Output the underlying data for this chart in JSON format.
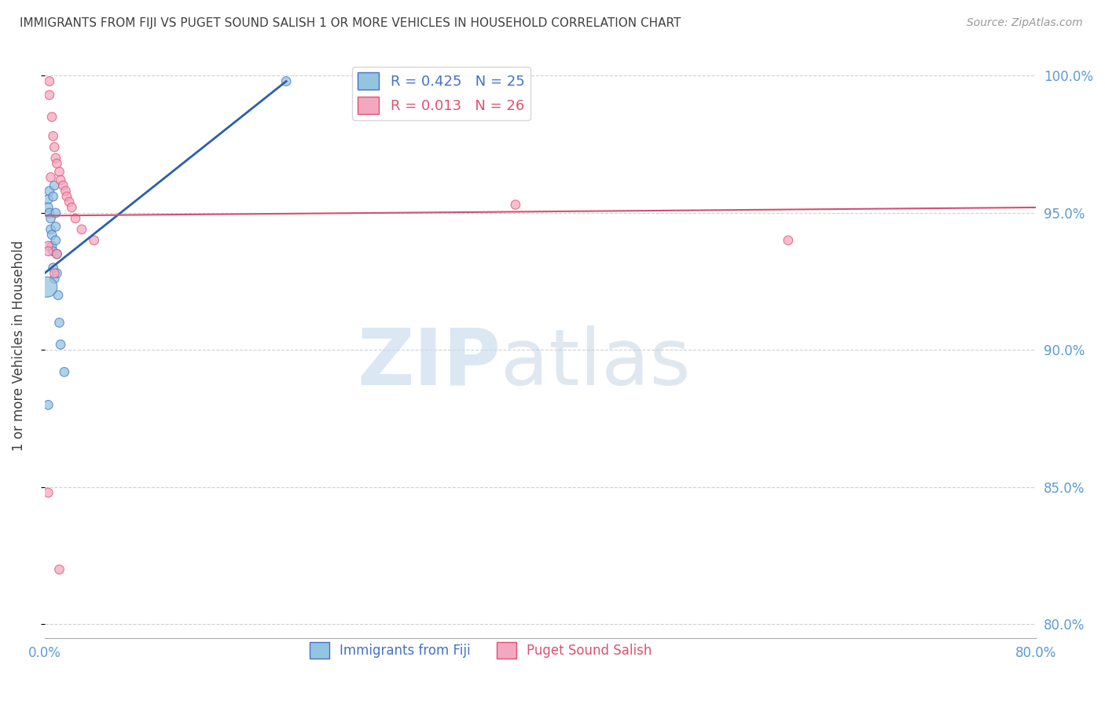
{
  "title": "IMMIGRANTS FROM FIJI VS PUGET SOUND SALISH 1 OR MORE VEHICLES IN HOUSEHOLD CORRELATION CHART",
  "source": "Source: ZipAtlas.com",
  "ylabel": "1 or more Vehicles in Household",
  "blue_label": "Immigrants from Fiji",
  "pink_label": "Puget Sound Salish",
  "blue_R": 0.425,
  "blue_N": 25,
  "pink_R": 0.013,
  "pink_N": 26,
  "xlim": [
    0.0,
    0.8
  ],
  "ylim": [
    0.795,
    1.008
  ],
  "yticks": [
    0.8,
    0.85,
    0.9,
    0.95,
    1.0
  ],
  "ytick_labels": [
    "80.0%",
    "85.0%",
    "90.0%",
    "95.0%",
    "100.0%"
  ],
  "blue_color": "#93c4e0",
  "pink_color": "#f4a8bf",
  "blue_edge_color": "#4472c4",
  "pink_edge_color": "#e05070",
  "blue_line_color": "#2b5fad",
  "pink_line_color": "#d45070",
  "axis_tick_color": "#5b9bd5",
  "title_color": "#404040",
  "grid_color": "#cccccc",
  "blue_x": [
    0.003,
    0.003,
    0.004,
    0.004,
    0.005,
    0.005,
    0.006,
    0.006,
    0.007,
    0.007,
    0.007,
    0.008,
    0.008,
    0.009,
    0.009,
    0.009,
    0.01,
    0.01,
    0.011,
    0.012,
    0.013,
    0.016,
    0.002,
    0.003,
    0.195
  ],
  "blue_y": [
    0.955,
    0.952,
    0.95,
    0.958,
    0.948,
    0.944,
    0.942,
    0.938,
    0.936,
    0.956,
    0.93,
    0.96,
    0.926,
    0.95,
    0.945,
    0.94,
    0.935,
    0.928,
    0.92,
    0.91,
    0.902,
    0.892,
    0.923,
    0.88,
    0.998
  ],
  "blue_large_idx": 22,
  "pink_x": [
    0.004,
    0.004,
    0.006,
    0.007,
    0.008,
    0.009,
    0.01,
    0.012,
    0.013,
    0.015,
    0.017,
    0.018,
    0.02,
    0.022,
    0.025,
    0.03,
    0.04,
    0.005,
    0.003,
    0.003,
    0.38,
    0.6,
    0.01,
    0.008,
    0.003,
    0.012
  ],
  "pink_y": [
    0.998,
    0.993,
    0.985,
    0.978,
    0.974,
    0.97,
    0.968,
    0.965,
    0.962,
    0.96,
    0.958,
    0.956,
    0.954,
    0.952,
    0.948,
    0.944,
    0.94,
    0.963,
    0.938,
    0.936,
    0.953,
    0.94,
    0.935,
    0.928,
    0.848,
    0.82
  ],
  "pink_large_idx": -1,
  "blue_line_x0": 0.0,
  "blue_line_y0": 0.928,
  "blue_line_x1": 0.195,
  "blue_line_y1": 0.998,
  "pink_line_x0": 0.0,
  "pink_line_y0": 0.949,
  "pink_line_x1": 0.8,
  "pink_line_y1": 0.952
}
